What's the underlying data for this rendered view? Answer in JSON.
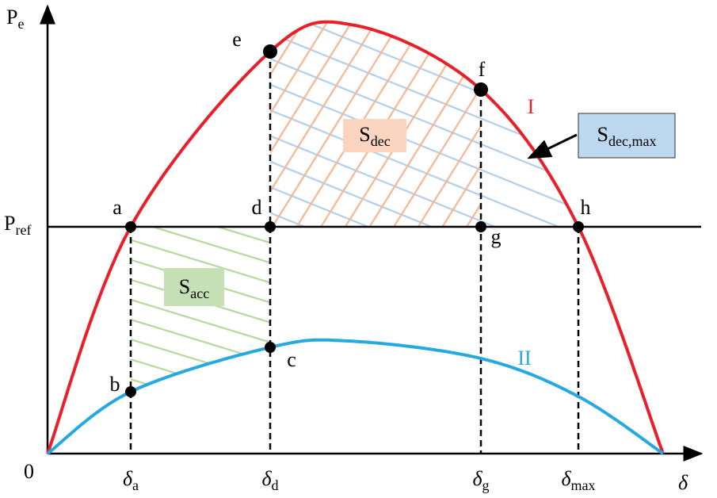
{
  "axes": {
    "y_label": {
      "main": "P",
      "sub": "e"
    },
    "ref_label": {
      "main": "P",
      "sub": "ref"
    },
    "origin": "0",
    "x_label": "δ"
  },
  "angles": [
    {
      "main": "δ",
      "sub": "a"
    },
    {
      "main": "δ",
      "sub": "d"
    },
    {
      "main": "δ",
      "sub": "g"
    },
    {
      "main": "δ",
      "sub": "max"
    }
  ],
  "points": [
    "a",
    "b",
    "c",
    "d",
    "e",
    "f",
    "g",
    "h"
  ],
  "regions": [
    {
      "main": "S",
      "sub": "dec"
    },
    {
      "main": "S",
      "sub": "acc"
    },
    {
      "main": "S",
      "sub": "dec,max"
    }
  ],
  "curves": [
    "I",
    "II"
  ]
}
